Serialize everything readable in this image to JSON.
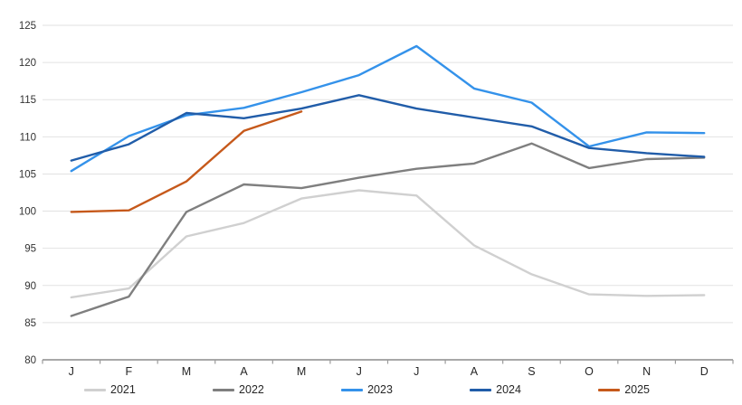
{
  "chart_data": {
    "type": "line",
    "title": "",
    "xlabel": "",
    "ylabel": "",
    "x_categories": [
      "J",
      "F",
      "M",
      "A",
      "M",
      "J",
      "J",
      "A",
      "S",
      "O",
      "N",
      "D"
    ],
    "ylim": [
      80,
      125
    ],
    "yticks": [
      80,
      85,
      90,
      95,
      100,
      105,
      110,
      115,
      120,
      125
    ],
    "grid": "horizontal",
    "legend_position": "bottom",
    "series": [
      {
        "name": "2021",
        "color": "#d0d0d0",
        "values": [
          88.4,
          89.6,
          96.6,
          98.4,
          101.7,
          102.8,
          102.1,
          95.4,
          91.5,
          88.8,
          88.6,
          88.7
        ]
      },
      {
        "name": "2022",
        "color": "#7f7f7f",
        "values": [
          85.9,
          88.5,
          99.9,
          103.6,
          103.1,
          104.5,
          105.7,
          106.4,
          109.1,
          105.8,
          107.0,
          107.2
        ]
      },
      {
        "name": "2023",
        "color": "#3492ea",
        "values": [
          105.4,
          110.1,
          112.9,
          113.9,
          116.0,
          118.3,
          122.2,
          116.5,
          114.6,
          108.7,
          110.6,
          110.5
        ]
      },
      {
        "name": "2024",
        "color": "#215da9",
        "values": [
          106.8,
          109.0,
          113.2,
          112.5,
          113.8,
          115.6,
          113.8,
          112.6,
          111.4,
          108.5,
          107.8,
          107.3
        ]
      },
      {
        "name": "2025",
        "color": "#c6591b",
        "values": [
          99.9,
          100.1,
          104.0,
          110.8,
          113.4,
          null,
          null,
          null,
          null,
          null,
          null,
          null
        ]
      }
    ],
    "style": {
      "gridline_color": "#e2e2e2",
      "axis_color": "#9b9b9b",
      "tick_color": "#9b9b9b",
      "label_color": "#333333"
    }
  }
}
